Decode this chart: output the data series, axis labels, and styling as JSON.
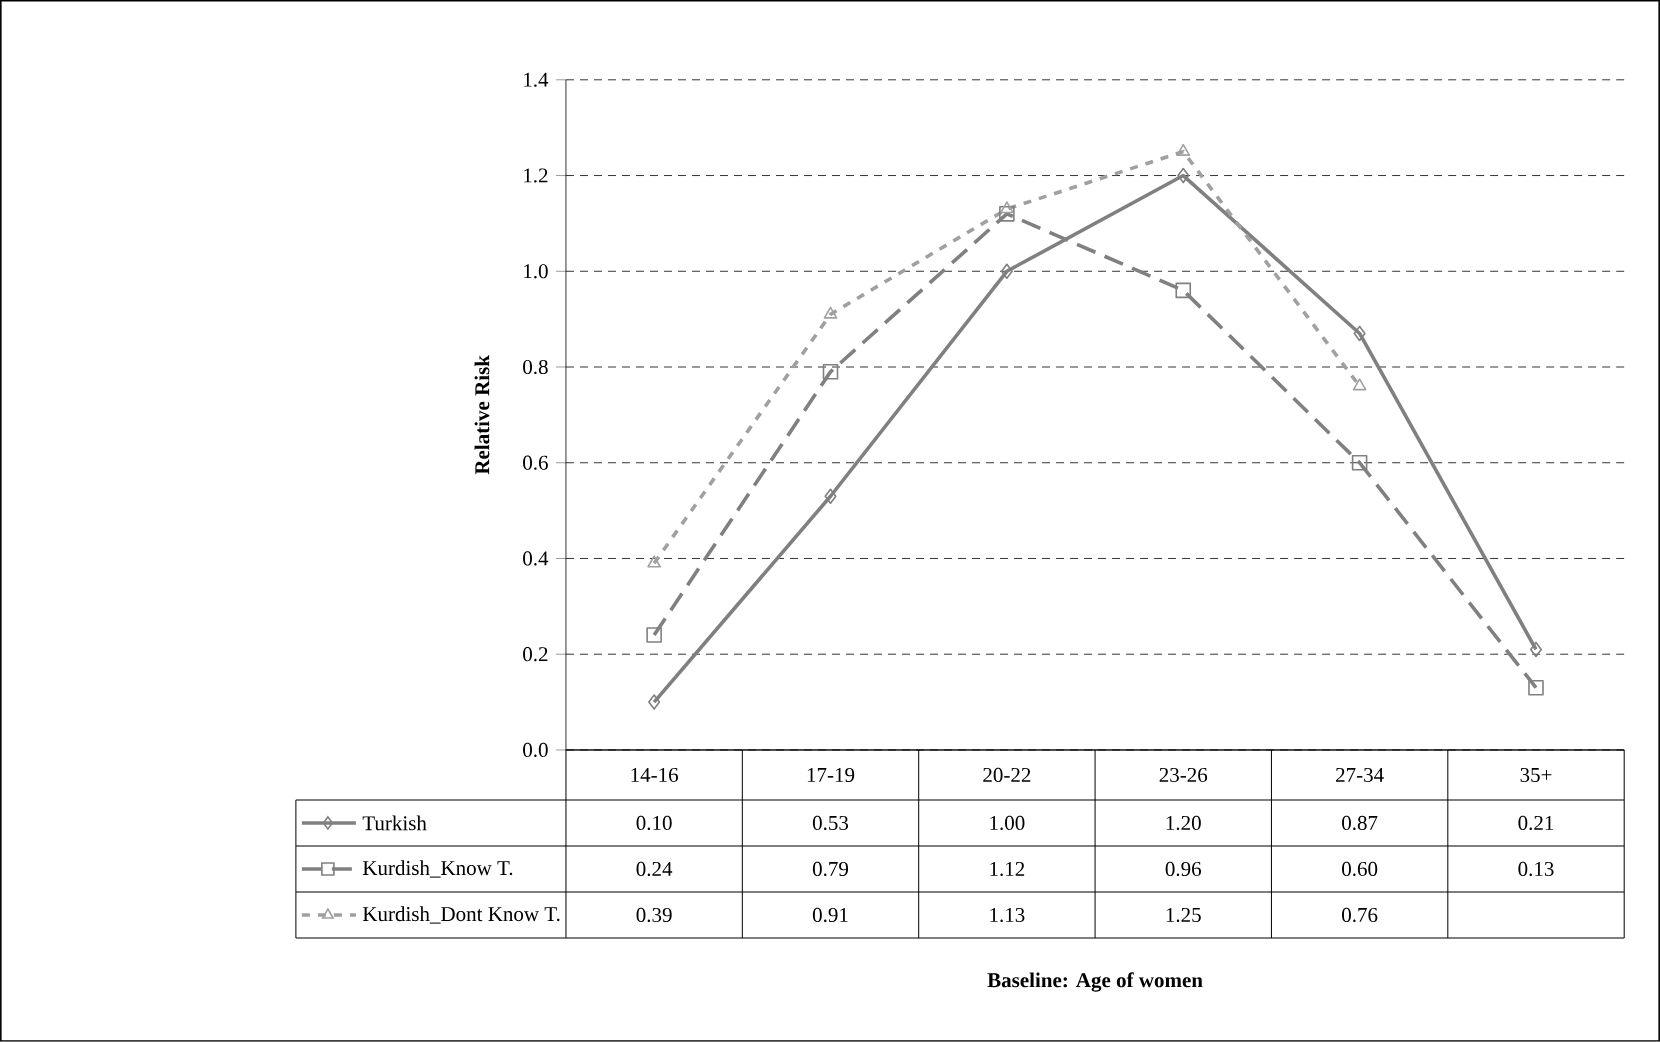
{
  "chart_data": {
    "type": "line",
    "annotations": [
      "Baseline: Age of women"
    ],
    "ylabel": "Relative Risk",
    "categories": [
      "14-16",
      "17-19",
      "20-22",
      "23-26",
      "27-34",
      "35+"
    ],
    "series": [
      {
        "name": "Turkish",
        "color": "#808080",
        "marker": "diamond",
        "line_style": "solid",
        "values": [
          0.1,
          0.53,
          1.0,
          1.2,
          0.87,
          0.21
        ],
        "value_labels": [
          "0.10",
          "0.53",
          "1.00",
          "1.20",
          "0.87",
          "0.21"
        ]
      },
      {
        "name": "Kurdish_Know T.",
        "color": "#808080",
        "marker": "square",
        "line_style": "dashed",
        "values": [
          0.24,
          0.79,
          1.12,
          0.96,
          0.6,
          0.13
        ],
        "value_labels": [
          "0.24",
          "0.79",
          "1.12",
          "0.96",
          "0.60",
          "0.13"
        ]
      },
      {
        "name": "Kurdish_Dont Know T.",
        "color": "#a0a0a0",
        "marker": "triangle",
        "line_style": "dotted",
        "values": [
          0.39,
          0.91,
          1.13,
          1.25,
          0.76,
          null
        ],
        "value_labels": [
          "0.39",
          "0.91",
          "1.13",
          "1.25",
          "0.76",
          null
        ]
      }
    ],
    "ylim": [
      0,
      1.4
    ],
    "yticks": [
      {
        "value": 0,
        "label": "0.0"
      },
      {
        "value": 0.2,
        "label": "0.2"
      },
      {
        "value": 0.4,
        "label": "0.4"
      },
      {
        "value": 0.6,
        "label": "0.6"
      },
      {
        "value": 0.8,
        "label": "0.8"
      },
      {
        "value": 1.0,
        "label": "1.0"
      },
      {
        "value": 1.2,
        "label": "1.2"
      },
      {
        "value": 1.4,
        "label": "1.4"
      }
    ],
    "grid": "y",
    "legend": "bottom"
  }
}
